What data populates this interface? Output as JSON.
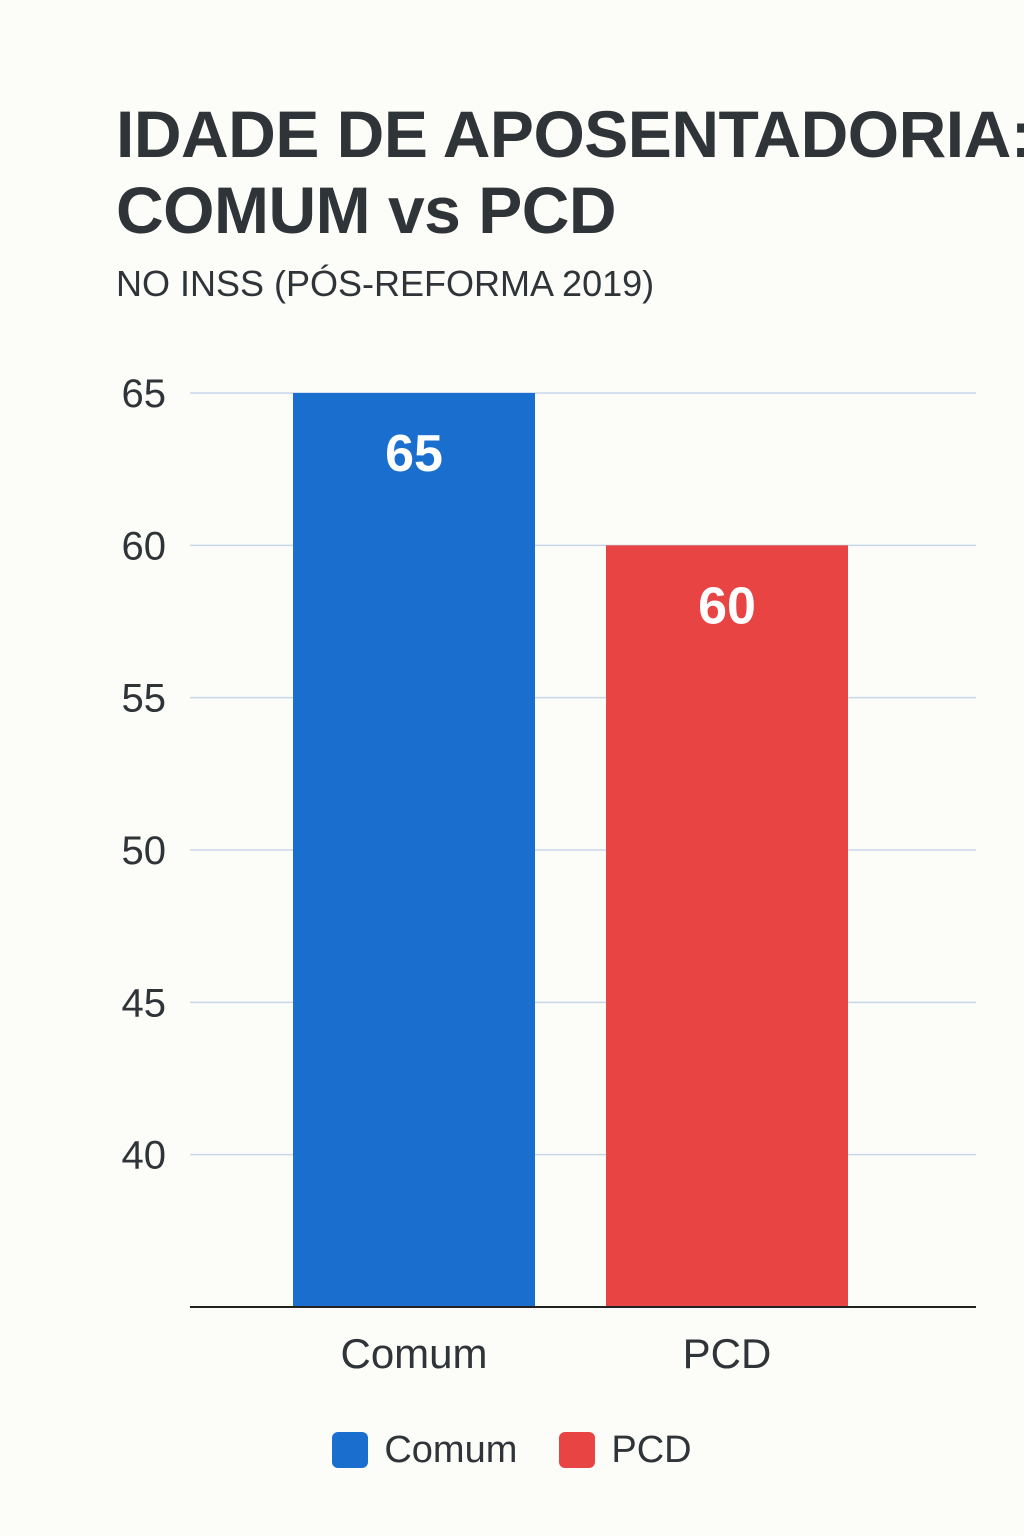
{
  "header": {
    "title_line1": "IDADE DE APOSENTADORIA:",
    "title_line2": "COMUM vs PCD",
    "subtitle": "NO INSS (PÓS-REFORMA 2019)"
  },
  "colors": {
    "background": "#fcfcf8",
    "comum": "#1a6fce",
    "pcd": "#e84444",
    "gridline": "#c9d6ea",
    "axis": "#222222",
    "text": "#2f3439"
  },
  "chart_data": {
    "type": "bar",
    "title": "IDADE DE APOSENTADORIA: COMUM vs PCD",
    "subtitle": "NO INSS (PÓS-REFORMA 2019)",
    "categories": [
      "Comum",
      "PCD"
    ],
    "values": [
      65,
      60
    ],
    "value_labels": [
      "65",
      "60"
    ],
    "xlabel": "",
    "ylabel": "",
    "ylim": [
      35,
      65
    ],
    "yticks": [
      40,
      45,
      50,
      55,
      60,
      65
    ],
    "grid": true,
    "legend": [
      "Comum",
      "PCD"
    ],
    "legend_position": "bottom"
  },
  "legend": {
    "items": [
      {
        "label": "Comum",
        "color": "#1a6fce"
      },
      {
        "label": "PCD",
        "color": "#e84444"
      }
    ]
  }
}
